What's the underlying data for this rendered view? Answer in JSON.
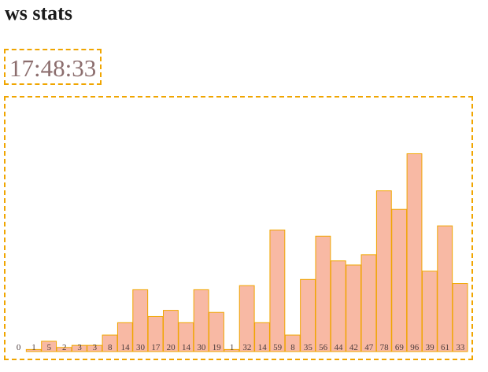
{
  "header": {
    "title": "ws stats"
  },
  "clock": {
    "time": "17:48:33"
  },
  "colors": {
    "accent_border": "#f0a500",
    "bar_fill": "#f8b9a4",
    "bar_stroke": "#f0a500",
    "clock_text": "#8c6e6e"
  },
  "chart_data": {
    "type": "bar",
    "title": "",
    "xlabel": "",
    "ylabel": "",
    "ylim": [
      0,
      100
    ],
    "grid": false,
    "values": [
      0,
      1,
      5,
      2,
      3,
      3,
      8,
      14,
      30,
      17,
      20,
      14,
      30,
      19,
      1,
      32,
      14,
      59,
      8,
      35,
      56,
      44,
      42,
      47,
      78,
      69,
      96,
      39,
      61,
      33
    ]
  }
}
